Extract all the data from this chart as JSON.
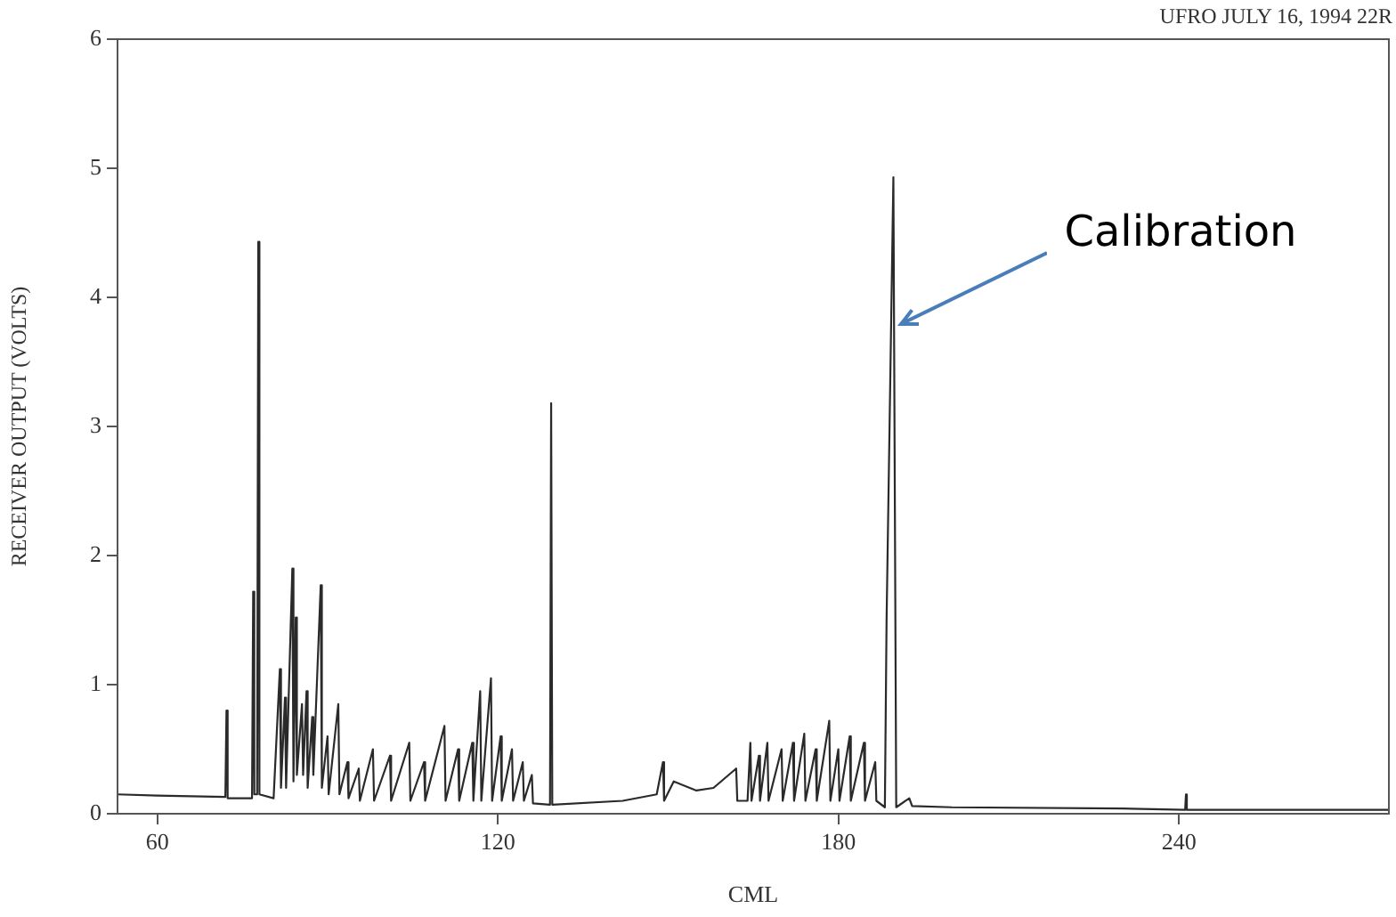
{
  "chart_data": {
    "type": "line",
    "xlabel": "CML",
    "ylabel": "RECEIVER OUTPUT (VOLTS)",
    "annotations": [
      "UFRO  JULY 16, 1994  22R",
      {
        "text": "Calibration",
        "x": 190,
        "y": 3.8
      }
    ],
    "xlim": [
      53,
      277
    ],
    "xticks": [
      60,
      120,
      180,
      240
    ],
    "ylim": [
      0,
      6
    ],
    "yticks": [
      0,
      1,
      2,
      3,
      4,
      5,
      6
    ],
    "grid": false,
    "legend": false,
    "marker": "none",
    "line_style": "solid",
    "series": [
      {
        "color": "#2a2a2a",
        "x": [
          53,
          60,
          72.0,
          72.2,
          72.4,
          76.7,
          76.9,
          77.1,
          77.6,
          77.8,
          78.0,
          80.5,
          81.6,
          81.8,
          82.5,
          82.7,
          83.8,
          84.0,
          84.4,
          84.6,
          85.5,
          85.7,
          86.3,
          86.5,
          87.3,
          87.5,
          88.8,
          89.0,
          90.0,
          90.2,
          91.9,
          92.1,
          93.5,
          93.7,
          95.5,
          95.7,
          98.0,
          98.2,
          101.0,
          101.2,
          104.4,
          104.6,
          107.0,
          107.2,
          110.6,
          110.8,
          113.0,
          113.2,
          115.5,
          115.7,
          116.9,
          117.1,
          118.8,
          119.0,
          120.5,
          120.7,
          122.5,
          122.7,
          124.4,
          124.6,
          126.0,
          126.2,
          129.2,
          129.4,
          129.6,
          142,
          148,
          149.1,
          149.3,
          151,
          155,
          158,
          162,
          162.2,
          164.0,
          164.5,
          164.7,
          166.0,
          166.2,
          167.5,
          167.7,
          170.0,
          170.2,
          172.0,
          172.2,
          174.0,
          174.2,
          176.0,
          176.2,
          178.4,
          178.6,
          180.0,
          180.2,
          182.0,
          182.2,
          184.5,
          184.7,
          186.5,
          186.7,
          188.2,
          188.5,
          189.7,
          190.2,
          192.5,
          193,
          200,
          230,
          241.1,
          241.25,
          241.4,
          277
        ],
        "values": [
          0.15,
          0.14,
          0.13,
          0.8,
          0.12,
          0.12,
          1.72,
          0.15,
          0.15,
          4.43,
          0.15,
          0.12,
          1.12,
          0.2,
          0.9,
          0.2,
          1.9,
          0.25,
          1.52,
          0.3,
          0.85,
          0.3,
          0.95,
          0.2,
          0.75,
          0.3,
          1.77,
          0.2,
          0.6,
          0.15,
          0.85,
          0.15,
          0.4,
          0.12,
          0.35,
          0.1,
          0.5,
          0.1,
          0.45,
          0.1,
          0.55,
          0.1,
          0.4,
          0.1,
          0.68,
          0.1,
          0.5,
          0.1,
          0.55,
          0.1,
          0.95,
          0.1,
          1.05,
          0.1,
          0.6,
          0.1,
          0.5,
          0.1,
          0.4,
          0.1,
          0.3,
          0.08,
          0.07,
          3.18,
          0.07,
          0.1,
          0.15,
          0.4,
          0.1,
          0.25,
          0.18,
          0.2,
          0.35,
          0.1,
          0.1,
          0.55,
          0.1,
          0.45,
          0.1,
          0.55,
          0.1,
          0.5,
          0.1,
          0.55,
          0.1,
          0.62,
          0.1,
          0.5,
          0.1,
          0.72,
          0.1,
          0.5,
          0.1,
          0.6,
          0.1,
          0.55,
          0.1,
          0.4,
          0.1,
          0.05,
          1.5,
          4.93,
          0.05,
          0.12,
          0.06,
          0.05,
          0.04,
          0.03,
          0.15,
          0.03,
          0.03
        ]
      }
    ]
  }
}
